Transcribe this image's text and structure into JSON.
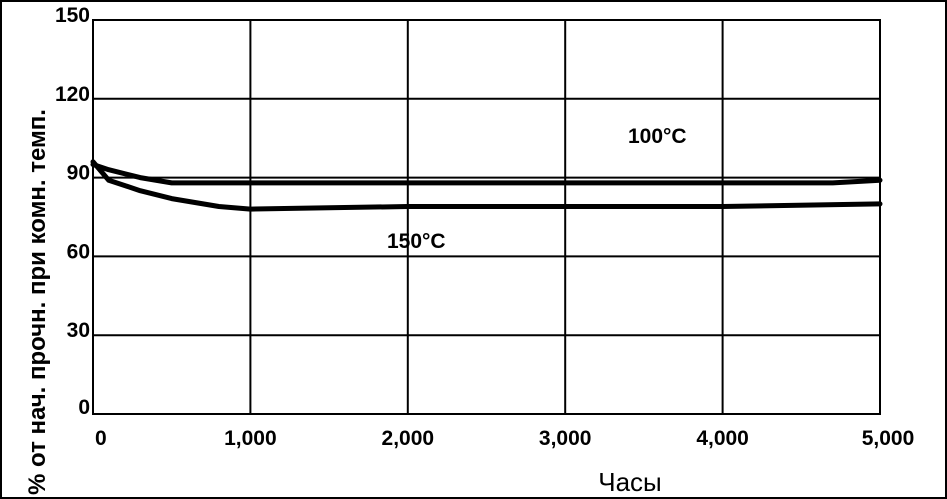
{
  "chart_data": {
    "type": "line",
    "xlabel": "Часы",
    "ylabel": "% от нач. прочн. при комн. темп.",
    "xlim": [
      0,
      5000
    ],
    "ylim": [
      0,
      150
    ],
    "grid": true,
    "x_ticks": [
      "0",
      "1,000",
      "2,000",
      "3,000",
      "4,000",
      "5,000"
    ],
    "y_ticks": [
      "0",
      "30",
      "60",
      "90",
      "120",
      "150"
    ],
    "series": [
      {
        "name": "100°C",
        "x": [
          0,
          100,
          300,
          500,
          700,
          1000,
          2000,
          3000,
          4000,
          4700,
          5000
        ],
        "y": [
          95,
          93,
          90,
          88,
          88,
          88,
          88,
          88,
          88,
          88,
          89
        ]
      },
      {
        "name": "150°C",
        "x": [
          0,
          100,
          300,
          500,
          800,
          1000,
          2000,
          3000,
          4000,
          5000
        ],
        "y": [
          96,
          89,
          85,
          82,
          79,
          78,
          79,
          79,
          79,
          80
        ]
      }
    ],
    "annotations": [
      "100°C",
      "150°C"
    ]
  },
  "colors": {
    "line": "#000000",
    "grid": "#000000",
    "background": "#ffffff"
  }
}
